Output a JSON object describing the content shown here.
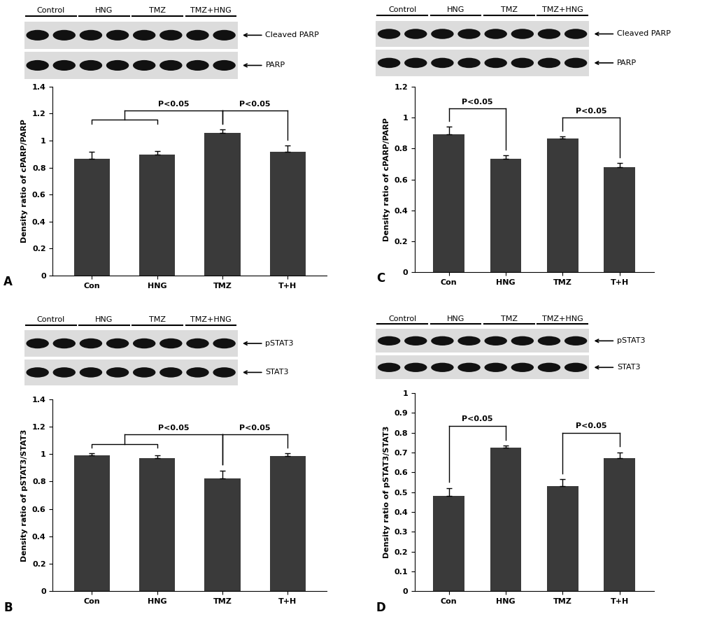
{
  "chart_data": [
    {
      "type": "bar",
      "panel": "A",
      "blot": {
        "groups": [
          "Control",
          "HNG",
          "TMZ",
          "TMZ+HNG"
        ],
        "bands": [
          "Cleaved PARP",
          "PARP"
        ]
      },
      "categories": [
        "Con",
        "HNG",
        "TMZ",
        "T+H"
      ],
      "values": [
        0.865,
        0.895,
        1.055,
        0.915
      ],
      "errors": [
        0.05,
        0.025,
        0.03,
        0.05
      ],
      "color": "#3a3a3a",
      "y_label": "Density ratio of cPARP/PARP",
      "ylim": [
        0,
        1.4
      ],
      "yticks": [
        0,
        0.2,
        0.4,
        0.6,
        0.8,
        1,
        1.2,
        1.4
      ],
      "annotations": [
        {
          "text": "P<0.05",
          "from": [
            "Con",
            "HNG"
          ],
          "to": [
            "TMZ"
          ]
        },
        {
          "text": "P<0.05",
          "from": [
            "TMZ"
          ],
          "to": [
            "T+H"
          ]
        }
      ]
    },
    {
      "type": "bar",
      "panel": "B",
      "blot": {
        "groups": [
          "Control",
          "HNG",
          "TMZ",
          "TMZ+HNG"
        ],
        "bands": [
          "pSTAT3",
          "STAT3"
        ]
      },
      "categories": [
        "Con",
        "HNG",
        "TMZ",
        "T+H"
      ],
      "values": [
        0.99,
        0.97,
        0.82,
        0.985
      ],
      "errors": [
        0.015,
        0.02,
        0.06,
        0.02
      ],
      "color": "#3a3a3a",
      "y_label": "Density ratio of pSTAT3/STAT3",
      "ylim": [
        0,
        1.4
      ],
      "yticks": [
        0,
        0.2,
        0.4,
        0.6,
        0.8,
        1,
        1.2,
        1.4
      ],
      "annotations": [
        {
          "text": "P<0.05",
          "from": [
            "Con",
            "HNG"
          ],
          "to": [
            "TMZ"
          ]
        },
        {
          "text": "P<0.05",
          "from": [
            "TMZ"
          ],
          "to": [
            "T+H"
          ]
        }
      ]
    },
    {
      "type": "bar",
      "panel": "C",
      "blot": {
        "groups": [
          "Control",
          "HNG",
          "TMZ",
          "TMZ+HNG"
        ],
        "bands": [
          "Cleaved PARP",
          "PARP"
        ]
      },
      "categories": [
        "Con",
        "HNG",
        "TMZ",
        "T+H"
      ],
      "values": [
        0.89,
        0.735,
        0.865,
        0.68
      ],
      "errors": [
        0.05,
        0.02,
        0.015,
        0.025
      ],
      "color": "#3a3a3a",
      "y_label": "Density ratio of cPARP/PARP",
      "ylim": [
        0,
        1.2
      ],
      "yticks": [
        0,
        0.2,
        0.4,
        0.6,
        0.8,
        1,
        1.2
      ],
      "annotations": [
        {
          "text": "P<0.05",
          "from": [
            "Con"
          ],
          "to": [
            "HNG"
          ]
        },
        {
          "text": "P<0.05",
          "from": [
            "TMZ"
          ],
          "to": [
            "T+H"
          ]
        }
      ]
    },
    {
      "type": "bar",
      "panel": "D",
      "blot": {
        "groups": [
          "Control",
          "HNG",
          "TMZ",
          "TMZ+HNG"
        ],
        "bands": [
          "pSTAT3",
          "STAT3"
        ]
      },
      "categories": [
        "Con",
        "HNG",
        "TMZ",
        "T+H"
      ],
      "values": [
        0.48,
        0.725,
        0.53,
        0.67
      ],
      "errors": [
        0.04,
        0.01,
        0.035,
        0.03
      ],
      "color": "#3a3a3a",
      "y_label": "Density ratio of pSTAT3/STAT3",
      "ylim": [
        0,
        1
      ],
      "yticks": [
        0,
        0.1,
        0.2,
        0.3,
        0.4,
        0.5,
        0.6,
        0.7,
        0.8,
        0.9,
        1
      ],
      "annotations": [
        {
          "text": "P<0.05",
          "from": [
            "Con"
          ],
          "to": [
            "HNG"
          ]
        },
        {
          "text": "P<0.05",
          "from": [
            "TMZ"
          ],
          "to": [
            "T+H"
          ]
        }
      ]
    }
  ]
}
